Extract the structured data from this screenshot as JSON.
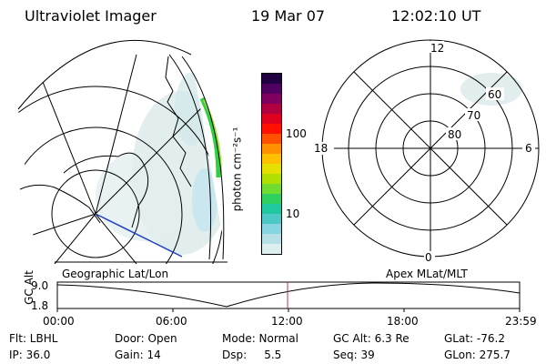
{
  "header": {
    "instrument": "Ultraviolet Imager",
    "date": "19 Mar 07",
    "time": "12:02:10 UT"
  },
  "geo_panel": {
    "label": "Geographic Lat/Lon"
  },
  "colorbar": {
    "unit": "photon cm⁻²s⁻¹",
    "ticks": [
      "100",
      "10"
    ],
    "colors": [
      "#ddeeee",
      "#b6e0e6",
      "#86d4df",
      "#4cc9c4",
      "#20c8a0",
      "#30d060",
      "#70dc30",
      "#b0e000",
      "#e6e000",
      "#ffc000",
      "#ff9000",
      "#ff5000",
      "#ff1000",
      "#e00020",
      "#b00040",
      "#800060",
      "#500060",
      "#200040"
    ]
  },
  "polar_panel": {
    "label": "Apex MLat/MLT",
    "mlt_labels": {
      "top": "12",
      "left": "18",
      "right": "6",
      "bottom": "0"
    },
    "mlat_labels": [
      "60",
      "70",
      "80"
    ]
  },
  "altitude_plot": {
    "ylabel": "GC Alt",
    "yticks": [
      "9.0",
      "1.8"
    ],
    "xticks": [
      "00:00",
      "06:00",
      "12:00",
      "18:00",
      "23:59"
    ],
    "current_time_marker_color": "#c0304a"
  },
  "info": {
    "filter": "Flt: LBHL",
    "ip": "IP: 36.0",
    "door": "Door: Open",
    "gain": "Gain: 14",
    "mode": "Mode: Normal",
    "dsp": "Dsp:     5.5",
    "gc_alt": "GC Alt: 6.3 Re",
    "seq": "Seq: 39",
    "glat": "GLat: -76.2",
    "glon": "GLon: 275.7"
  }
}
